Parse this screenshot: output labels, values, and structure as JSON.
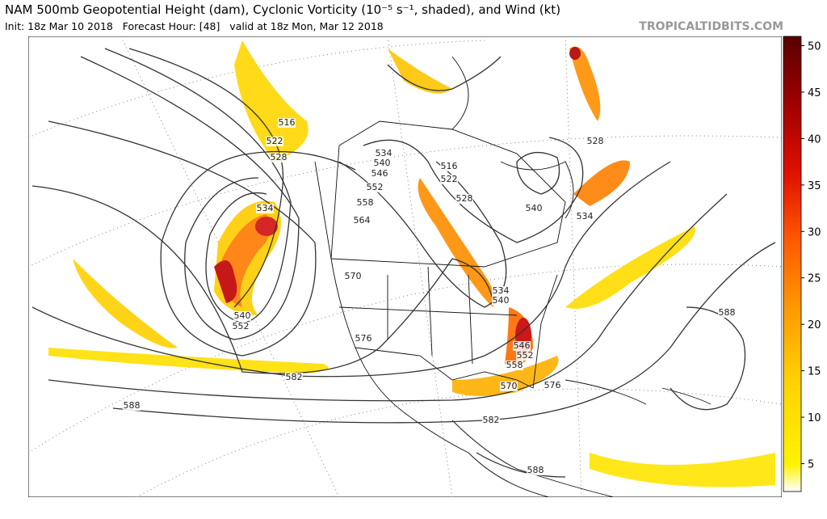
{
  "header": {
    "title": "NAM 500mb Geopotential Height (dam), Cyclonic Vorticity (10⁻⁵ s⁻¹, shaded), and Wind (kt)",
    "subtitle": "Init: 18z Mar 10 2018   Forecast Hour: [48]   valid at 18z Mon, Mar 12 2018",
    "site": "TROPICALTIDBITS.COM"
  },
  "colorbar": {
    "range": [
      2,
      51
    ],
    "ticks": [
      5,
      10,
      15,
      20,
      25,
      30,
      35,
      40,
      45,
      50
    ]
  },
  "contour_labels": [
    516,
    522,
    528,
    534,
    540,
    546,
    552,
    558,
    564,
    534,
    570,
    576,
    582,
    588,
    540,
    552,
    516,
    522,
    528,
    540,
    534,
    528,
    534,
    540,
    546,
    552,
    558,
    570,
    576,
    582,
    588,
    588
  ]
}
